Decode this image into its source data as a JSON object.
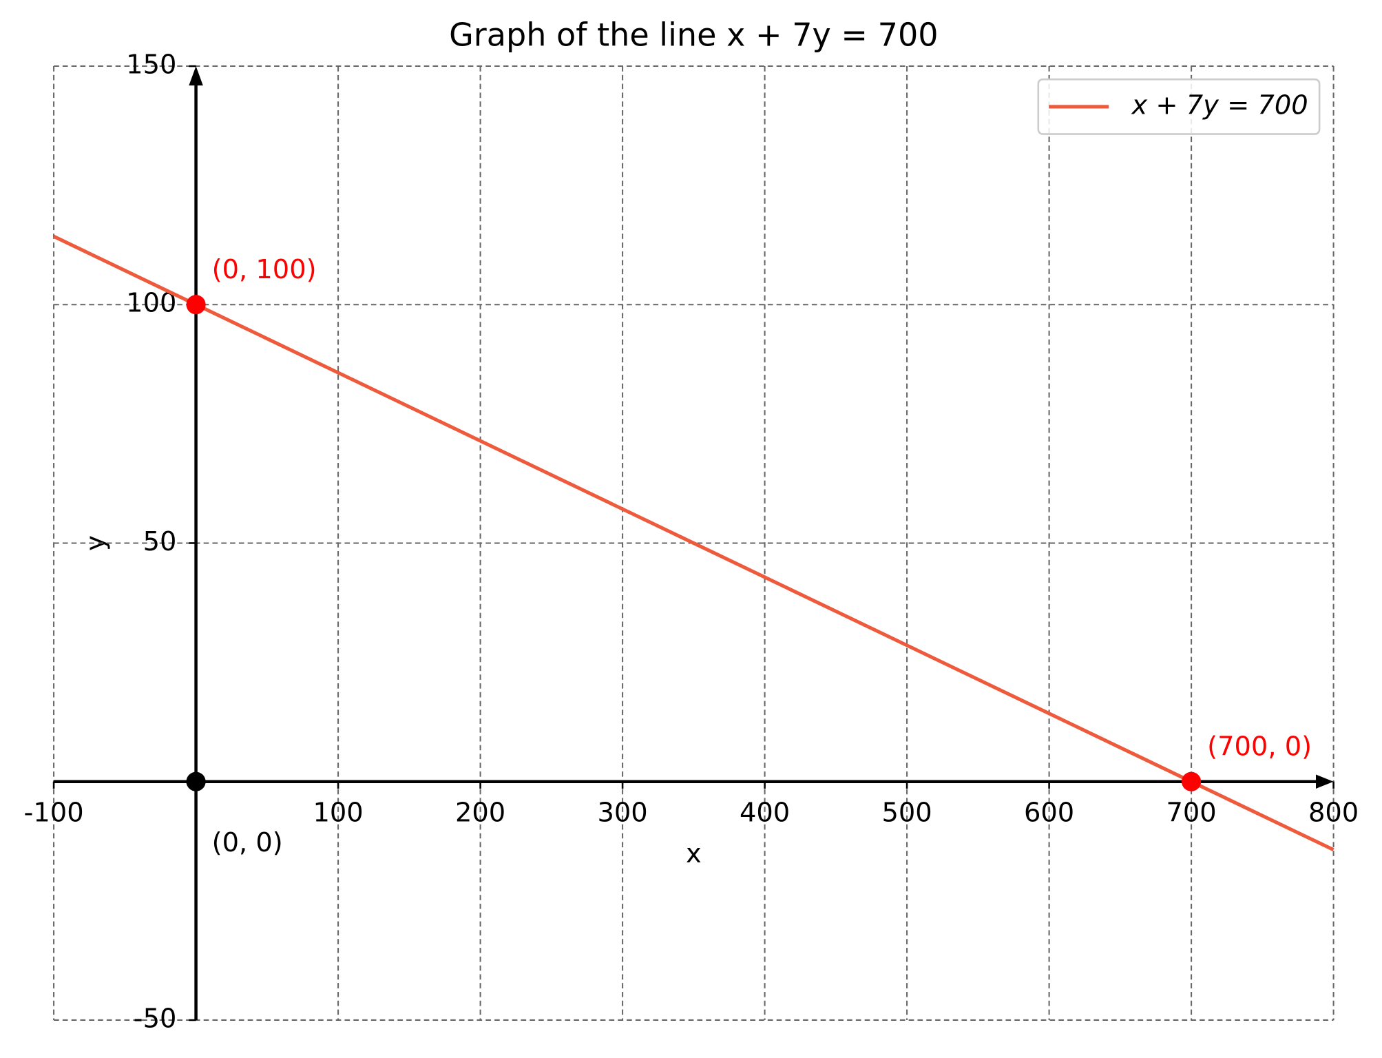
{
  "chart_data": {
    "type": "line",
    "title": "Graph of the line x + 7y = 700",
    "xlabel": "x",
    "ylabel": "y",
    "xlim": [
      -100,
      800
    ],
    "ylim": [
      -50,
      150
    ],
    "xticks": [
      -100,
      100,
      200,
      300,
      400,
      500,
      600,
      700,
      800
    ],
    "yticks": [
      -50,
      50,
      100,
      150
    ],
    "grid": true,
    "legend": "upper right",
    "series": [
      {
        "name": "x + 7y = 700",
        "color": "#ee5a3c",
        "x": [
          -100,
          800
        ],
        "values": [
          114.3,
          -14.3
        ]
      }
    ],
    "points": [
      {
        "x": 0,
        "y": 100,
        "label": "(0, 100)",
        "color": "#ff0000"
      },
      {
        "x": 700,
        "y": 0,
        "label": "(700, 0)",
        "color": "#ff0000"
      },
      {
        "x": 0,
        "y": 0,
        "label": "(0, 0)",
        "color": "#000000"
      }
    ]
  }
}
